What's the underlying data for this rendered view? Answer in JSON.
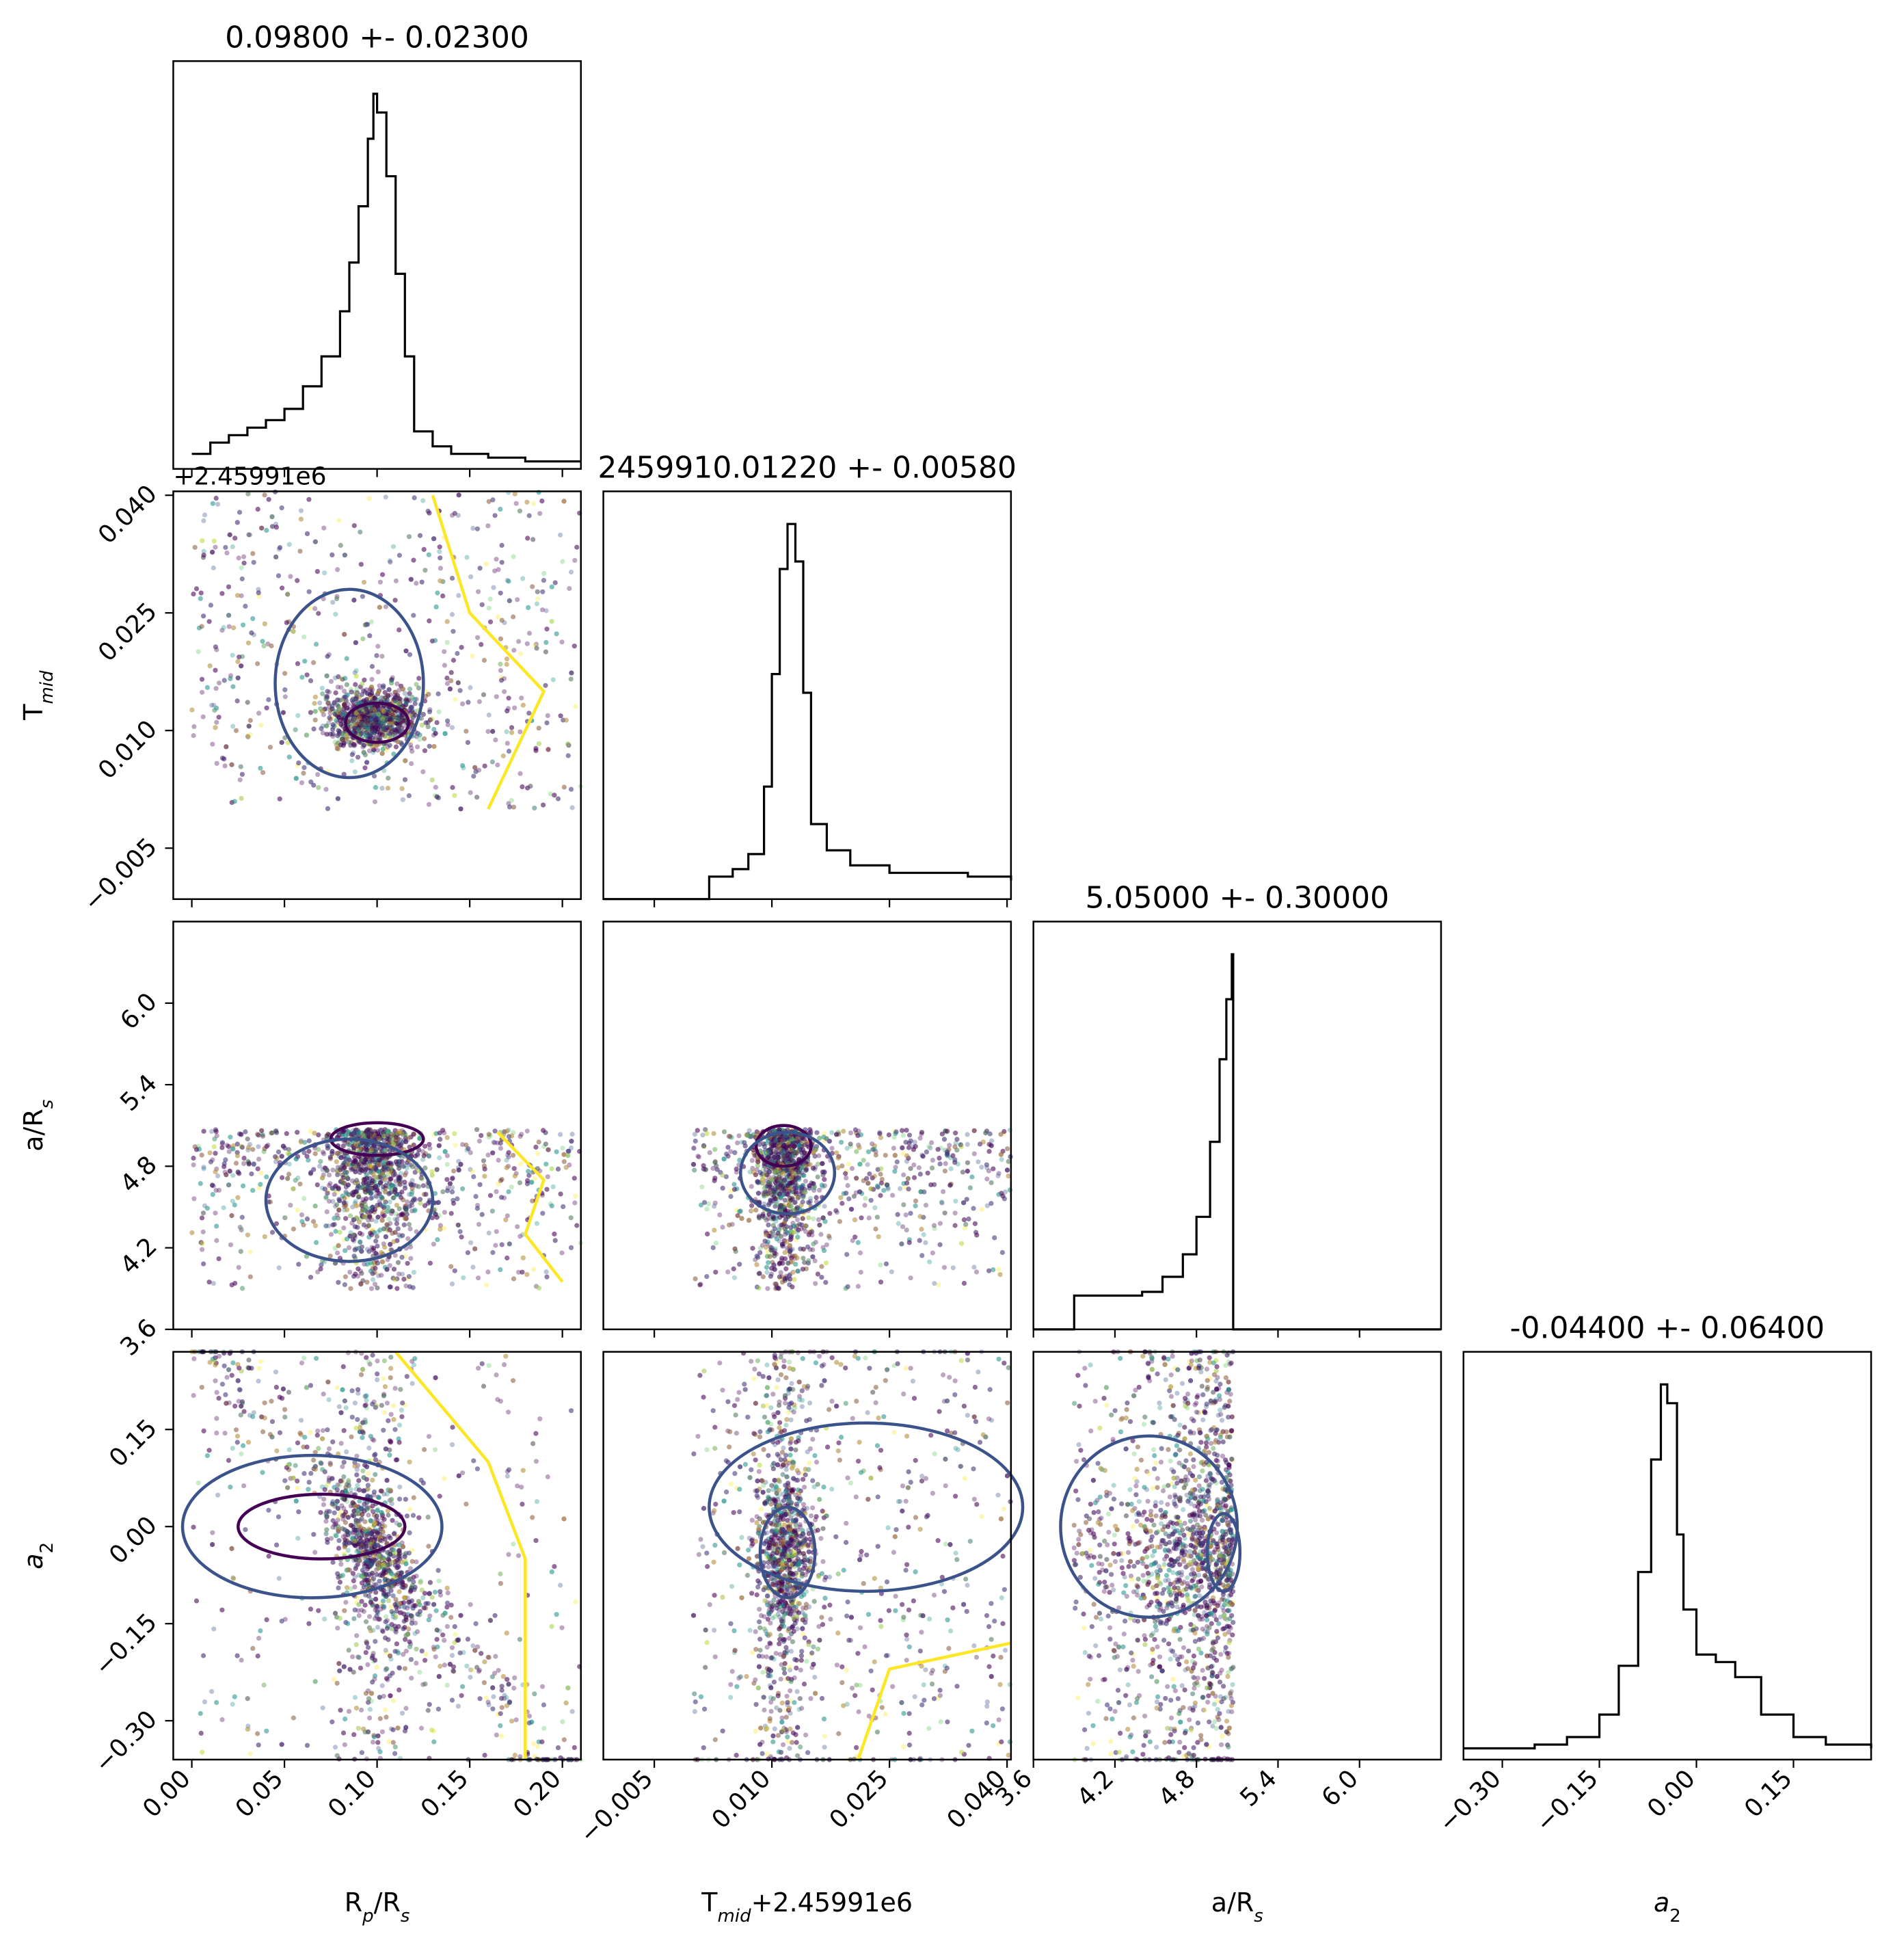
{
  "chart_data": {
    "type": "corner",
    "parameters": [
      "Rp/Rs",
      "Tmid",
      "a/Rs",
      "a2"
    ],
    "diagonal_titles": [
      "0.09800 +- 0.02300",
      "2459910.01220 +- 0.00580",
      "5.05000 +- 0.30000",
      "-0.04400 +- 0.06400"
    ],
    "axis_labels": {
      "x": [
        {
          "main": "R",
          "sub": "p",
          "tail": "/R",
          "sub2": "s",
          "after": ""
        },
        {
          "main": "T",
          "sub": "mid",
          "tail": "+2.45991e6",
          "sub2": "",
          "after": ""
        },
        {
          "main": "a/R",
          "sub": "s",
          "tail": "",
          "sub2": "",
          "after": ""
        },
        {
          "main": "",
          "sub": "",
          "tail": "",
          "sub2": "",
          "after": "",
          "italic": "a",
          "italic_sub": "2"
        }
      ],
      "y": [
        null,
        {
          "main": "T",
          "sub": "mid"
        },
        {
          "main": "a/R",
          "sub": "s"
        },
        {
          "main": "",
          "sub": "",
          "italic": "a",
          "italic_sub": "2"
        }
      ]
    },
    "offset_label": "+2.45991e6",
    "ranges": [
      [
        -0.01,
        0.21
      ],
      [
        -0.0115,
        0.0405
      ],
      [
        3.6,
        6.6
      ],
      [
        -0.36,
        0.27
      ]
    ],
    "ticks": [
      [
        "0.00",
        "0.05",
        "0.10",
        "0.15",
        "0.20"
      ],
      [
        "−0.005",
        "0.010",
        "0.025",
        "0.040"
      ],
      [
        "3.6",
        "4.2",
        "4.8",
        "5.4",
        "6.0"
      ],
      [
        "−0.30",
        "−0.15",
        "0.00",
        "0.15"
      ]
    ],
    "tick_values": [
      [
        0.0,
        0.05,
        0.1,
        0.15,
        0.2
      ],
      [
        -0.005,
        0.01,
        0.025,
        0.04
      ],
      [
        3.6,
        4.2,
        4.8,
        5.4,
        6.0
      ],
      [
        -0.3,
        -0.15,
        0.0,
        0.15
      ]
    ],
    "histograms": [
      {
        "x": [
          0.0,
          0.01,
          0.02,
          0.03,
          0.04,
          0.05,
          0.06,
          0.07,
          0.08,
          0.085,
          0.09,
          0.095,
          0.098,
          0.1,
          0.105,
          0.11,
          0.115,
          0.12,
          0.13,
          0.14,
          0.16,
          0.18,
          0.2,
          0.21
        ],
        "y": [
          0.04,
          0.07,
          0.09,
          0.11,
          0.13,
          0.16,
          0.22,
          0.3,
          0.42,
          0.55,
          0.7,
          0.88,
          1.0,
          0.95,
          0.78,
          0.52,
          0.3,
          0.1,
          0.06,
          0.04,
          0.03,
          0.02,
          0.02,
          0.02
        ]
      },
      {
        "x": [
          -0.0115,
          -0.002,
          0.002,
          0.005,
          0.007,
          0.009,
          0.01,
          0.011,
          0.012,
          0.013,
          0.014,
          0.015,
          0.017,
          0.02,
          0.025,
          0.03,
          0.035,
          0.0405
        ],
        "y": [
          0.0,
          0.0,
          0.06,
          0.08,
          0.12,
          0.3,
          0.6,
          0.88,
          1.0,
          0.9,
          0.55,
          0.2,
          0.13,
          0.09,
          0.07,
          0.07,
          0.06,
          0.05
        ]
      },
      {
        "x": [
          3.6,
          3.75,
          3.9,
          4.2,
          4.4,
          4.55,
          4.7,
          4.8,
          4.9,
          4.97,
          5.02,
          5.06,
          5.07,
          6.6
        ],
        "y": [
          0.0,
          0.0,
          0.09,
          0.09,
          0.1,
          0.14,
          0.2,
          0.3,
          0.5,
          0.72,
          0.88,
          1.0,
          0.0,
          0.0
        ]
      },
      {
        "x": [
          -0.36,
          -0.25,
          -0.2,
          -0.15,
          -0.12,
          -0.09,
          -0.07,
          -0.055,
          -0.045,
          -0.03,
          -0.02,
          0.0,
          0.03,
          0.06,
          0.1,
          0.15,
          0.2,
          0.27
        ],
        "y": [
          0.03,
          0.04,
          0.06,
          0.12,
          0.25,
          0.5,
          0.8,
          1.0,
          0.95,
          0.6,
          0.4,
          0.28,
          0.26,
          0.22,
          0.12,
          0.06,
          0.04,
          0.03
        ]
      }
    ],
    "scatter_colors": [
      "#440154",
      "#3b528b",
      "#21918c",
      "#5ec962",
      "#fde725"
    ],
    "contour_colors": {
      "inner": "#440154",
      "mid": "#3b528b",
      "outer": "#fde725"
    },
    "legend": "none",
    "grid": false
  }
}
